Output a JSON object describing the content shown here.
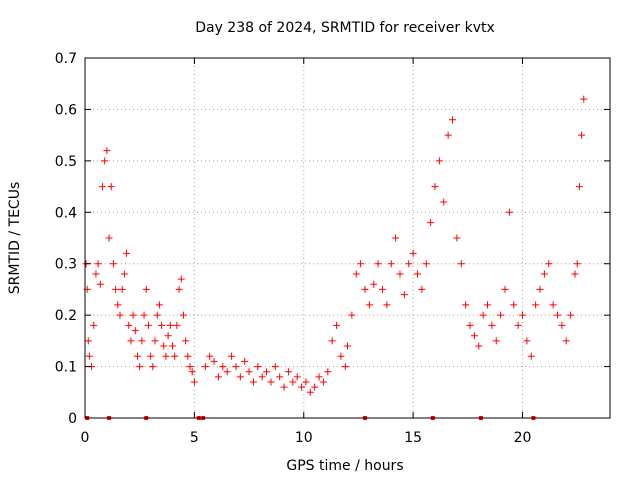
{
  "chart_data": {
    "type": "scatter",
    "title": "Day 238 of 2024, SRMTID for receiver kvtx",
    "xlabel": "GPS time / hours",
    "ylabel": "SRMTID / TECUs",
    "xlim": [
      0,
      24
    ],
    "ylim": [
      0,
      0.7
    ],
    "x_ticks": [
      0,
      5,
      10,
      15,
      20
    ],
    "x_tick_labels": [
      "0",
      "5",
      "10",
      "15",
      "20"
    ],
    "y_ticks": [
      0,
      0.1,
      0.2,
      0.3,
      0.4,
      0.5,
      0.6,
      0.7
    ],
    "y_tick_labels": [
      "0",
      "0.1",
      "0.2",
      "0.3",
      "0.4",
      "0.5",
      "0.6",
      "0.7"
    ],
    "grid": true,
    "marker": "+",
    "color": "#ff0000",
    "series": [
      {
        "name": "SRMTID",
        "x": [
          0.05,
          0.1,
          0.15,
          0.2,
          0.3,
          0.4,
          0.5,
          0.6,
          0.7,
          0.8,
          0.9,
          1.0,
          1.1,
          1.2,
          1.3,
          1.4,
          1.5,
          1.6,
          1.7,
          1.8,
          1.9,
          2.0,
          2.1,
          2.2,
          2.3,
          2.4,
          2.5,
          2.6,
          2.7,
          2.8,
          2.9,
          3.0,
          3.1,
          3.2,
          3.3,
          3.4,
          3.5,
          3.6,
          3.7,
          3.8,
          3.9,
          4.0,
          4.1,
          4.2,
          4.3,
          4.4,
          4.5,
          4.6,
          4.7,
          4.8,
          4.9,
          5.0,
          5.5,
          5.7,
          5.9,
          6.1,
          6.3,
          6.5,
          6.7,
          6.9,
          7.1,
          7.3,
          7.5,
          7.7,
          7.9,
          8.1,
          8.3,
          8.5,
          8.7,
          8.9,
          9.1,
          9.3,
          9.5,
          9.7,
          9.9,
          10.1,
          10.3,
          10.5,
          10.7,
          10.9,
          11.1,
          11.3,
          11.5,
          11.7,
          11.9,
          12.0,
          12.2,
          12.4,
          12.6,
          12.8,
          13.0,
          13.2,
          13.4,
          13.6,
          13.8,
          14.0,
          14.2,
          14.4,
          14.6,
          14.8,
          15.0,
          15.2,
          15.4,
          15.6,
          15.8,
          16.0,
          16.2,
          16.4,
          16.6,
          16.8,
          17.0,
          17.2,
          17.4,
          17.6,
          17.8,
          18.0,
          18.2,
          18.4,
          18.6,
          18.8,
          19.0,
          19.2,
          19.4,
          19.6,
          19.8,
          20.0,
          20.2,
          20.4,
          20.6,
          20.8,
          21.0,
          21.2,
          21.4,
          21.6,
          21.8,
          22.0,
          22.2,
          22.4,
          22.5,
          22.6,
          22.7,
          22.8
        ],
        "y": [
          0.3,
          0.25,
          0.15,
          0.12,
          0.1,
          0.18,
          0.28,
          0.3,
          0.26,
          0.45,
          0.5,
          0.52,
          0.35,
          0.45,
          0.3,
          0.25,
          0.22,
          0.2,
          0.25,
          0.28,
          0.32,
          0.18,
          0.15,
          0.2,
          0.17,
          0.12,
          0.1,
          0.15,
          0.2,
          0.25,
          0.18,
          0.12,
          0.1,
          0.15,
          0.2,
          0.22,
          0.18,
          0.14,
          0.12,
          0.16,
          0.18,
          0.14,
          0.12,
          0.18,
          0.25,
          0.27,
          0.2,
          0.15,
          0.12,
          0.1,
          0.09,
          0.07,
          0.1,
          0.12,
          0.11,
          0.08,
          0.1,
          0.09,
          0.12,
          0.1,
          0.08,
          0.11,
          0.09,
          0.07,
          0.1,
          0.08,
          0.09,
          0.07,
          0.1,
          0.08,
          0.06,
          0.09,
          0.07,
          0.08,
          0.06,
          0.07,
          0.05,
          0.06,
          0.08,
          0.07,
          0.09,
          0.15,
          0.18,
          0.12,
          0.1,
          0.14,
          0.2,
          0.28,
          0.3,
          0.25,
          0.22,
          0.26,
          0.3,
          0.25,
          0.22,
          0.3,
          0.35,
          0.28,
          0.24,
          0.3,
          0.32,
          0.28,
          0.25,
          0.3,
          0.38,
          0.45,
          0.5,
          0.42,
          0.55,
          0.58,
          0.35,
          0.3,
          0.22,
          0.18,
          0.16,
          0.14,
          0.2,
          0.22,
          0.18,
          0.15,
          0.2,
          0.25,
          0.4,
          0.22,
          0.18,
          0.2,
          0.15,
          0.12,
          0.22,
          0.25,
          0.28,
          0.3,
          0.22,
          0.2,
          0.18,
          0.15,
          0.2,
          0.28,
          0.3,
          0.45,
          0.55,
          0.62
        ]
      }
    ],
    "data_gaps_x": [
      0.1,
      1.1,
      2.8,
      5.2,
      5.4,
      12.8,
      15.9,
      18.1,
      20.5
    ]
  }
}
